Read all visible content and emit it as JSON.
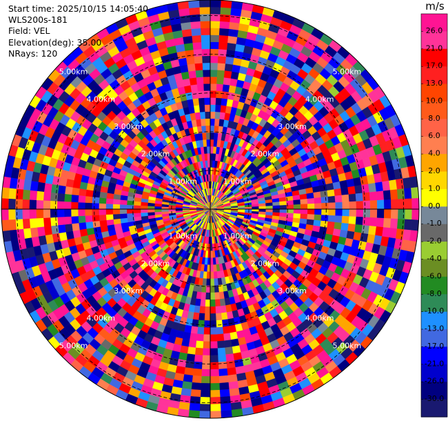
{
  "info": {
    "start_time": "Start time: 2025/10/15 14:05:40",
    "instrument": "WLS200s-181",
    "field": "Field: VEL",
    "elevation": "Elevation(deg): 35.00",
    "nrays": "NRays: 120"
  },
  "chart_data": {
    "type": "heatmap",
    "projection": "polar-ppi",
    "field": "VEL",
    "units": "m/s",
    "elevation_deg": 35.0,
    "nrays": 120,
    "range_rings_km": [
      1.0,
      2.0,
      3.0,
      4.0,
      5.0
    ],
    "max_range_km": 5.4,
    "ring_labels": [
      "1.00km",
      "2.00km",
      "3.00km",
      "4.00km",
      "5.00km"
    ],
    "colorbar": {
      "title": "m/s",
      "ticks": [
        "26.0",
        "21.0",
        "17.0",
        "13.0",
        "10.0",
        "8.0",
        "6.0",
        "4.0",
        "2.0",
        "1.0",
        "0.0",
        "-1.0",
        "-2.0",
        "-4.0",
        "-6.0",
        "-8.0",
        "-10.0",
        "-13.0",
        "-17.0",
        "-21.0",
        "-26.0",
        "-30.0"
      ],
      "colors": [
        "#ff1493",
        "#ff3399",
        "#ff0000",
        "#ff2020",
        "#ff4500",
        "#ff5a1a",
        "#ff6347",
        "#ff7f50",
        "#ffa500",
        "#ffd700",
        "#ffff00",
        "#778899",
        "#696969",
        "#9acd32",
        "#6b8e23",
        "#228b22",
        "#2e8b57",
        "#1e90ff",
        "#4169e1",
        "#0000ff",
        "#0000cd",
        "#000080",
        "#191970"
      ]
    }
  }
}
